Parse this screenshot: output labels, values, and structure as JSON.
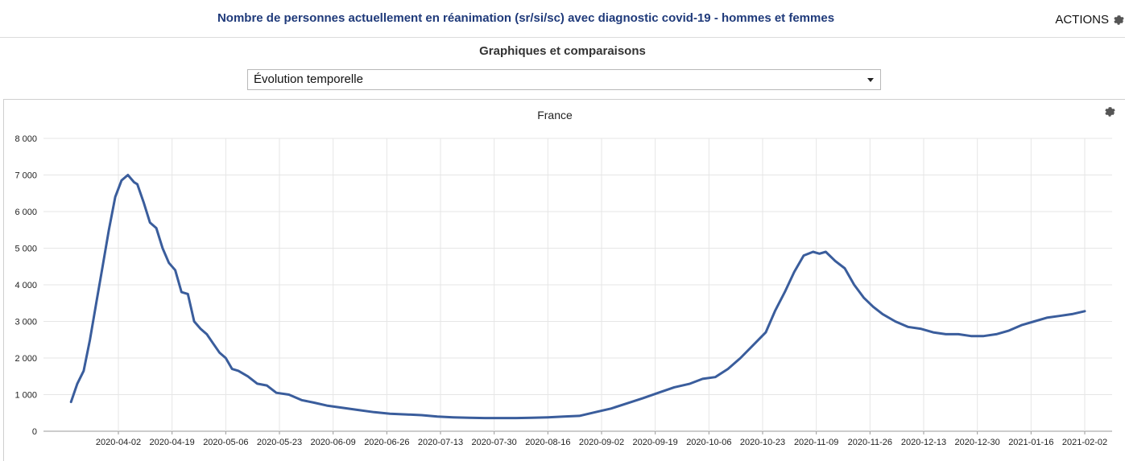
{
  "header": {
    "title": "Nombre de personnes actuellement en réanimation (sr/si/sc) avec diagnostic covid-19 - hommes et femmes",
    "actions_label": "ACTIONS"
  },
  "section": {
    "subtitle": "Graphiques et comparaisons"
  },
  "view_select": {
    "value": "Évolution temporelle"
  },
  "icons": {
    "actions": "gear-icon",
    "chart_settings": "gear-icon",
    "select": "chevron-down-icon"
  },
  "colors": {
    "title": "#1f3a7a",
    "line": "#3a5d9c",
    "grid": "#e6e6e6"
  },
  "chart_data": {
    "type": "line",
    "title": "France",
    "xlabel": "",
    "ylabel": "",
    "ylim": [
      0,
      8000
    ],
    "yticks": [
      0,
      1000,
      2000,
      3000,
      4000,
      5000,
      6000,
      7000,
      8000
    ],
    "ytick_labels": [
      "0",
      "1 000",
      "2 000",
      "3 000",
      "4 000",
      "5 000",
      "6 000",
      "7 000",
      "8 000"
    ],
    "xticks": [
      "2020-04-02",
      "2020-04-19",
      "2020-05-06",
      "2020-05-23",
      "2020-06-09",
      "2020-06-26",
      "2020-07-13",
      "2020-07-30",
      "2020-08-16",
      "2020-09-02",
      "2020-09-19",
      "2020-10-06",
      "2020-10-23",
      "2020-11-09",
      "2020-11-26",
      "2020-12-13",
      "2020-12-30",
      "2021-01-16",
      "2021-02-02"
    ],
    "grid": true,
    "series": [
      {
        "x": [
          "2020-03-18",
          "2020-03-20",
          "2020-03-22",
          "2020-03-24",
          "2020-03-26",
          "2020-03-28",
          "2020-03-30",
          "2020-04-01",
          "2020-04-03",
          "2020-04-05",
          "2020-04-07",
          "2020-04-08",
          "2020-04-10",
          "2020-04-12",
          "2020-04-14",
          "2020-04-16",
          "2020-04-18",
          "2020-04-20",
          "2020-04-22",
          "2020-04-24",
          "2020-04-26",
          "2020-04-28",
          "2020-04-30",
          "2020-05-02",
          "2020-05-04",
          "2020-05-06",
          "2020-05-08",
          "2020-05-10",
          "2020-05-13",
          "2020-05-16",
          "2020-05-19",
          "2020-05-22",
          "2020-05-26",
          "2020-05-30",
          "2020-06-03",
          "2020-06-07",
          "2020-06-12",
          "2020-06-17",
          "2020-06-22",
          "2020-06-27",
          "2020-07-02",
          "2020-07-07",
          "2020-07-12",
          "2020-07-17",
          "2020-07-22",
          "2020-07-27",
          "2020-08-01",
          "2020-08-06",
          "2020-08-11",
          "2020-08-16",
          "2020-08-21",
          "2020-08-26",
          "2020-08-31",
          "2020-09-05",
          "2020-09-10",
          "2020-09-15",
          "2020-09-20",
          "2020-09-25",
          "2020-09-30",
          "2020-10-04",
          "2020-10-08",
          "2020-10-12",
          "2020-10-16",
          "2020-10-20",
          "2020-10-24",
          "2020-10-27",
          "2020-10-30",
          "2020-11-02",
          "2020-11-05",
          "2020-11-08",
          "2020-11-10",
          "2020-11-12",
          "2020-11-15",
          "2020-11-18",
          "2020-11-21",
          "2020-11-24",
          "2020-11-27",
          "2020-11-30",
          "2020-12-04",
          "2020-12-08",
          "2020-12-12",
          "2020-12-16",
          "2020-12-20",
          "2020-12-24",
          "2020-12-28",
          "2021-01-01",
          "2021-01-05",
          "2021-01-09",
          "2021-01-13",
          "2021-01-17",
          "2021-01-21",
          "2021-01-25",
          "2021-01-29",
          "2021-02-02"
        ],
        "y": [
          800,
          1300,
          1650,
          2500,
          3500,
          4500,
          5500,
          6400,
          6850,
          7000,
          6800,
          6750,
          6250,
          5700,
          5550,
          5000,
          4600,
          4400,
          3800,
          3750,
          3000,
          2800,
          2650,
          2400,
          2150,
          2000,
          1700,
          1650,
          1500,
          1300,
          1250,
          1050,
          1000,
          850,
          780,
          700,
          640,
          580,
          520,
          480,
          460,
          440,
          400,
          380,
          370,
          360,
          360,
          360,
          370,
          380,
          400,
          420,
          520,
          620,
          760,
          900,
          1050,
          1200,
          1300,
          1430,
          1480,
          1700,
          2000,
          2350,
          2700,
          3300,
          3800,
          4350,
          4800,
          4900,
          4850,
          4900,
          4650,
          4450,
          4000,
          3650,
          3400,
          3200,
          3000,
          2850,
          2800,
          2700,
          2650,
          2650,
          2600,
          2600,
          2650,
          2750,
          2900,
          3000,
          3100,
          3150,
          3200,
          3280
        ]
      }
    ]
  }
}
